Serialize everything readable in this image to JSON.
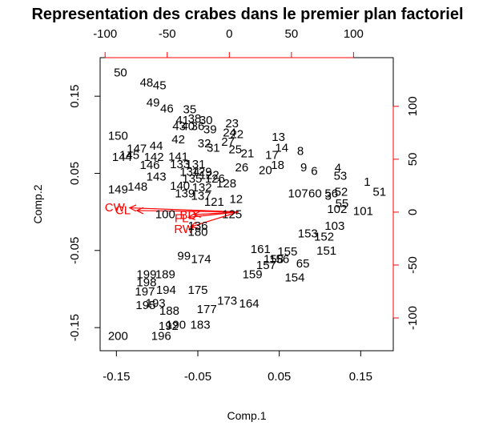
{
  "chart_data": {
    "type": "scatter",
    "title": "Representation des crabes dans le premier plan factoriel",
    "xlabel": "Comp.1",
    "ylabel": "Comp.2",
    "xlim": [
      -0.17,
      0.19
    ],
    "ylim": [
      -0.18,
      0.2
    ],
    "x_ticks": [
      -0.15,
      -0.05,
      0.05,
      0.15
    ],
    "y_ticks": [
      -0.15,
      -0.05,
      0.05,
      0.15
    ],
    "top_axis_ticks": [
      -100,
      -50,
      0,
      50,
      100
    ],
    "right_axis_ticks": [
      -100,
      -50,
      0,
      50,
      100
    ],
    "top_axis_range": [
      -104,
      132
    ],
    "right_axis_range": [
      -131,
      146
    ],
    "grid": false,
    "colors": {
      "points": "#000000",
      "variables": "#ff0000",
      "frame": "#000000"
    },
    "points": [
      {
        "label": "50",
        "x": -0.145,
        "y": 0.181
      },
      {
        "label": "48",
        "x": -0.113,
        "y": 0.168
      },
      {
        "label": "45",
        "x": -0.097,
        "y": 0.164
      },
      {
        "label": "49",
        "x": -0.105,
        "y": 0.142
      },
      {
        "label": "46",
        "x": -0.088,
        "y": 0.134
      },
      {
        "label": "35",
        "x": -0.06,
        "y": 0.133
      },
      {
        "label": "41",
        "x": -0.069,
        "y": 0.119
      },
      {
        "label": "38",
        "x": -0.054,
        "y": 0.121
      },
      {
        "label": "30",
        "x": -0.04,
        "y": 0.119
      },
      {
        "label": "43",
        "x": -0.073,
        "y": 0.111
      },
      {
        "label": "40",
        "x": -0.062,
        "y": 0.111
      },
      {
        "label": "36",
        "x": -0.05,
        "y": 0.111
      },
      {
        "label": "23",
        "x": -0.008,
        "y": 0.115
      },
      {
        "label": "39",
        "x": -0.035,
        "y": 0.107
      },
      {
        "label": "24",
        "x": -0.011,
        "y": 0.103
      },
      {
        "label": "22",
        "x": -0.002,
        "y": 0.101
      },
      {
        "label": "150",
        "x": -0.148,
        "y": 0.099
      },
      {
        "label": "42",
        "x": -0.074,
        "y": 0.094
      },
      {
        "label": "32",
        "x": -0.042,
        "y": 0.089
      },
      {
        "label": "27",
        "x": -0.013,
        "y": 0.091
      },
      {
        "label": "13",
        "x": 0.049,
        "y": 0.097
      },
      {
        "label": "147",
        "x": -0.125,
        "y": 0.082
      },
      {
        "label": "44",
        "x": -0.101,
        "y": 0.086
      },
      {
        "label": "31",
        "x": -0.031,
        "y": 0.083
      },
      {
        "label": "25",
        "x": -0.004,
        "y": 0.081
      },
      {
        "label": "14",
        "x": 0.053,
        "y": 0.083
      },
      {
        "label": "8",
        "x": 0.076,
        "y": 0.079
      },
      {
        "label": "21",
        "x": 0.011,
        "y": 0.076
      },
      {
        "label": "17",
        "x": 0.041,
        "y": 0.074
      },
      {
        "label": "145",
        "x": -0.134,
        "y": 0.074
      },
      {
        "label": "144",
        "x": -0.143,
        "y": 0.071
      },
      {
        "label": "142",
        "x": -0.104,
        "y": 0.071
      },
      {
        "label": "141",
        "x": -0.074,
        "y": 0.072
      },
      {
        "label": "146",
        "x": -0.109,
        "y": 0.061
      },
      {
        "label": "133",
        "x": -0.072,
        "y": 0.062
      },
      {
        "label": "131",
        "x": -0.053,
        "y": 0.062
      },
      {
        "label": "18",
        "x": 0.048,
        "y": 0.061
      },
      {
        "label": "26",
        "x": 0.004,
        "y": 0.058
      },
      {
        "label": "20",
        "x": 0.033,
        "y": 0.054
      },
      {
        "label": "9",
        "x": 0.08,
        "y": 0.058
      },
      {
        "label": "6",
        "x": 0.093,
        "y": 0.053
      },
      {
        "label": "4",
        "x": 0.122,
        "y": 0.057
      },
      {
        "label": "53",
        "x": 0.125,
        "y": 0.047
      },
      {
        "label": "134",
        "x": -0.06,
        "y": 0.052
      },
      {
        "label": "129",
        "x": -0.045,
        "y": 0.052
      },
      {
        "label": "122",
        "x": -0.036,
        "y": 0.048
      },
      {
        "label": "143",
        "x": -0.101,
        "y": 0.046
      },
      {
        "label": "135",
        "x": -0.057,
        "y": 0.043
      },
      {
        "label": "126",
        "x": -0.029,
        "y": 0.043
      },
      {
        "label": "128",
        "x": -0.015,
        "y": 0.037
      },
      {
        "label": "1",
        "x": 0.158,
        "y": 0.039
      },
      {
        "label": "148",
        "x": -0.124,
        "y": 0.033
      },
      {
        "label": "140",
        "x": -0.072,
        "y": 0.034
      },
      {
        "label": "132",
        "x": -0.045,
        "y": 0.032
      },
      {
        "label": "149",
        "x": -0.148,
        "y": 0.029
      },
      {
        "label": "51",
        "x": 0.173,
        "y": 0.026
      },
      {
        "label": "139",
        "x": -0.066,
        "y": 0.024
      },
      {
        "label": "137",
        "x": -0.046,
        "y": 0.021
      },
      {
        "label": "60",
        "x": 0.094,
        "y": 0.024
      },
      {
        "label": "56",
        "x": 0.114,
        "y": 0.024
      },
      {
        "label": "52",
        "x": 0.126,
        "y": 0.026
      },
      {
        "label": "107",
        "x": 0.073,
        "y": 0.024
      },
      {
        "label": "3",
        "x": 0.11,
        "y": 0.021
      },
      {
        "label": "121",
        "x": -0.03,
        "y": 0.013
      },
      {
        "label": "12",
        "x": -0.003,
        "y": 0.017
      },
      {
        "label": "55",
        "x": 0.127,
        "y": 0.011
      },
      {
        "label": "102",
        "x": 0.121,
        "y": 0.004
      },
      {
        "label": "101",
        "x": 0.153,
        "y": 0.001
      },
      {
        "label": "100",
        "x": -0.09,
        "y": -0.003
      },
      {
        "label": "125",
        "x": -0.008,
        "y": -0.003
      },
      {
        "label": "103",
        "x": 0.118,
        "y": -0.018
      },
      {
        "label": "136",
        "x": -0.05,
        "y": -0.018
      },
      {
        "label": "180",
        "x": -0.05,
        "y": -0.026
      },
      {
        "label": "152",
        "x": 0.105,
        "y": -0.032
      },
      {
        "label": "153",
        "x": 0.085,
        "y": -0.028
      },
      {
        "label": "99",
        "x": -0.067,
        "y": -0.057
      },
      {
        "label": "151",
        "x": 0.108,
        "y": -0.05
      },
      {
        "label": "161",
        "x": 0.027,
        "y": -0.048
      },
      {
        "label": "155",
        "x": 0.06,
        "y": -0.051
      },
      {
        "label": "158",
        "x": 0.043,
        "y": -0.061
      },
      {
        "label": "156",
        "x": 0.05,
        "y": -0.061
      },
      {
        "label": "65",
        "x": 0.079,
        "y": -0.067
      },
      {
        "label": "157",
        "x": 0.034,
        "y": -0.069
      },
      {
        "label": "154",
        "x": 0.069,
        "y": -0.085
      },
      {
        "label": "159",
        "x": 0.017,
        "y": -0.081
      },
      {
        "label": "174",
        "x": -0.046,
        "y": -0.061
      },
      {
        "label": "199",
        "x": -0.113,
        "y": -0.081
      },
      {
        "label": "189",
        "x": -0.09,
        "y": -0.081
      },
      {
        "label": "198",
        "x": -0.113,
        "y": -0.091
      },
      {
        "label": "197",
        "x": -0.115,
        "y": -0.103
      },
      {
        "label": "194",
        "x": -0.089,
        "y": -0.101
      },
      {
        "label": "193",
        "x": -0.102,
        "y": -0.118
      },
      {
        "label": "195",
        "x": -0.114,
        "y": -0.121
      },
      {
        "label": "188",
        "x": -0.085,
        "y": -0.128
      },
      {
        "label": "177",
        "x": -0.039,
        "y": -0.126
      },
      {
        "label": "173",
        "x": -0.014,
        "y": -0.115
      },
      {
        "label": "164",
        "x": 0.013,
        "y": -0.119
      },
      {
        "label": "175",
        "x": -0.05,
        "y": -0.101
      },
      {
        "label": "192",
        "x": -0.086,
        "y": -0.148
      },
      {
        "label": "190",
        "x": -0.077,
        "y": -0.146
      },
      {
        "label": "183",
        "x": -0.047,
        "y": -0.146
      },
      {
        "label": "196",
        "x": -0.095,
        "y": -0.161
      },
      {
        "label": "200",
        "x": -0.148,
        "y": -0.161
      }
    ],
    "variables": [
      {
        "label": "CW",
        "x": -0.152,
        "y": 0.006
      },
      {
        "label": "CL",
        "x": -0.142,
        "y": 0.002
      },
      {
        "label": "FL",
        "x": -0.07,
        "y": -0.008
      },
      {
        "label": "RW",
        "x": -0.067,
        "y": -0.022
      },
      {
        "label": "BD",
        "x": -0.062,
        "y": -0.004
      }
    ]
  }
}
